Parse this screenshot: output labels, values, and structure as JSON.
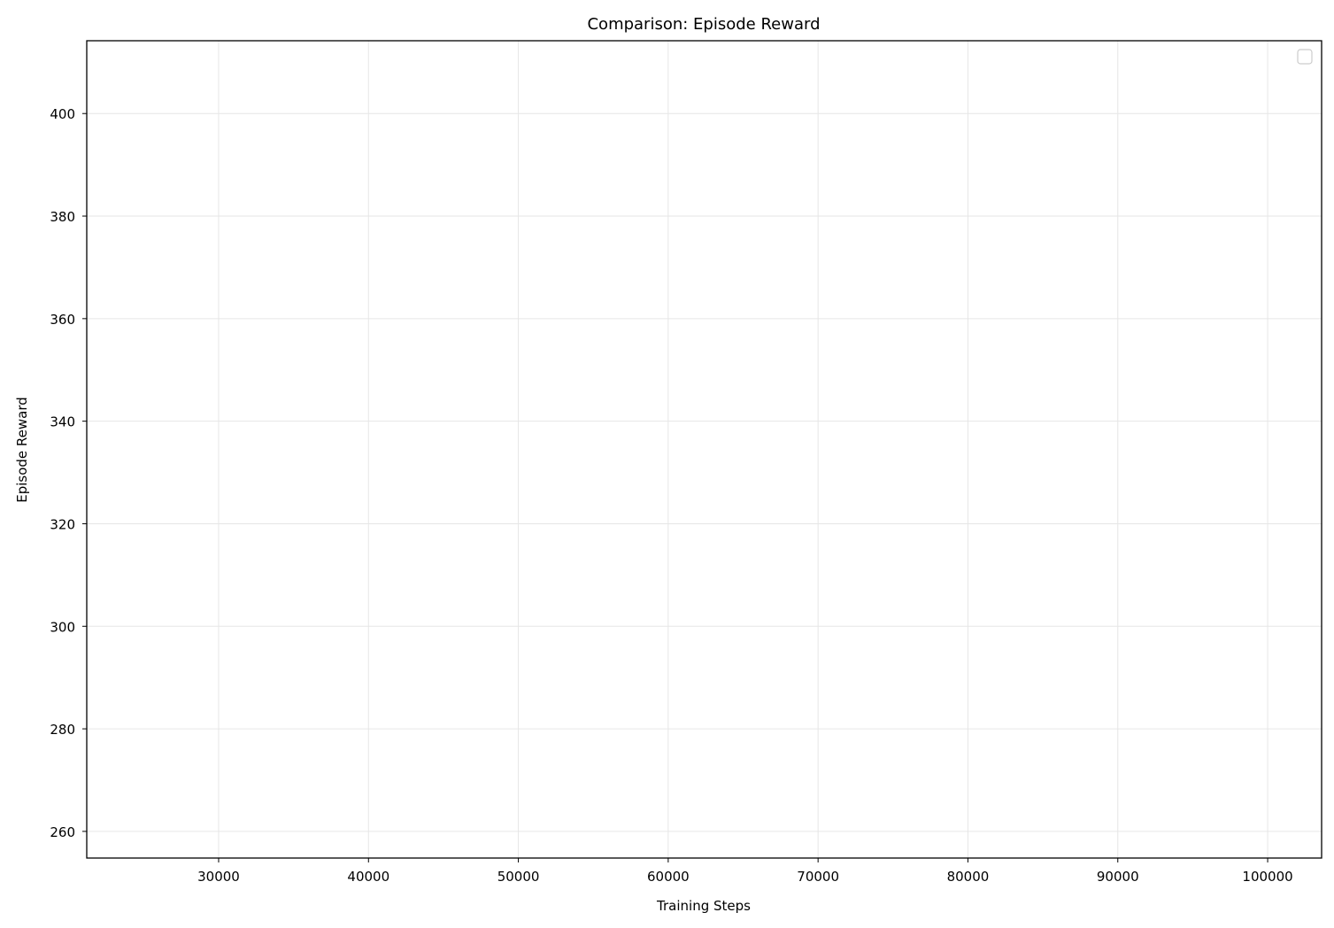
{
  "chart_data": {
    "type": "line",
    "title": "Comparison: Episode Reward",
    "xlabel": "Training Steps",
    "ylabel": "Episode Reward",
    "xlim": [
      21200,
      103600
    ],
    "ylim": [
      254.8,
      414.2
    ],
    "xticks": [
      30000,
      40000,
      50000,
      60000,
      70000,
      80000,
      90000,
      100000
    ],
    "yticks": [
      260,
      280,
      300,
      320,
      340,
      360,
      380,
      400
    ],
    "grid": true,
    "legend": {
      "position": "top-right",
      "entries": []
    },
    "series": []
  },
  "colors": {
    "grid": "#e6e6e6",
    "axis": "#000000",
    "legend_border": "#cccccc"
  }
}
